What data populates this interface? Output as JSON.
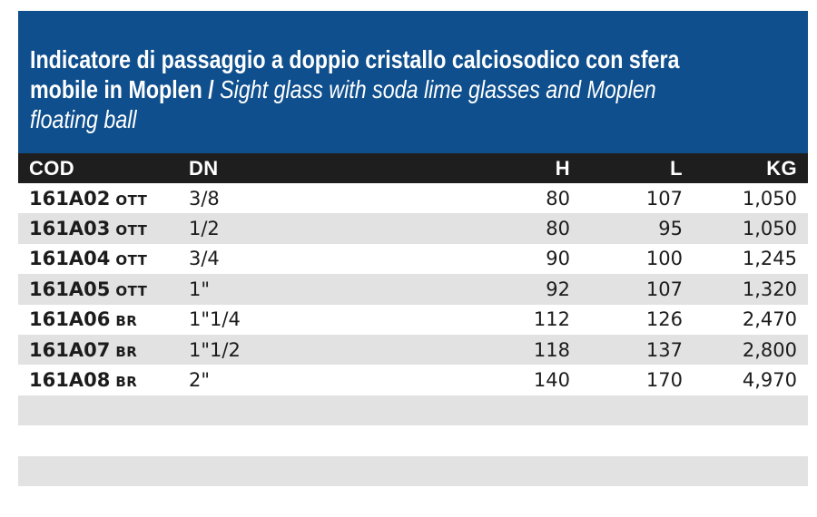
{
  "title": {
    "line1_bold": "Indicatore di passaggio a doppio cristallo calciosodico con sfera",
    "line2_bold": "mobile in Moplen /",
    "line2_italic": "Sight glass with soda lime glasses and Moplen",
    "line3_italic": "floating ball"
  },
  "table": {
    "columns": [
      {
        "key": "cod",
        "label": "COD"
      },
      {
        "key": "dn",
        "label": "DN"
      },
      {
        "key": "h",
        "label": "H"
      },
      {
        "key": "l",
        "label": "L"
      },
      {
        "key": "kg",
        "label": "KG"
      }
    ],
    "rows": [
      {
        "cod": "161A02",
        "cod_suffix": "OTT",
        "dn": "3/8",
        "h": "80",
        "l": "107",
        "kg": "1,050"
      },
      {
        "cod": "161A03",
        "cod_suffix": "OTT",
        "dn": "1/2",
        "h": "80",
        "l": "95",
        "kg": "1,050"
      },
      {
        "cod": "161A04",
        "cod_suffix": "OTT",
        "dn": "3/4",
        "h": "90",
        "l": "100",
        "kg": "1,245"
      },
      {
        "cod": "161A05",
        "cod_suffix": "OTT",
        "dn": "1\"",
        "h": "92",
        "l": "107",
        "kg": "1,320"
      },
      {
        "cod": "161A06",
        "cod_suffix": "BR",
        "dn": "1\"1/4",
        "h": "112",
        "l": "126",
        "kg": "2,470"
      },
      {
        "cod": "161A07",
        "cod_suffix": "BR",
        "dn": "1\"1/2",
        "h": "118",
        "l": "137",
        "kg": "2,800"
      },
      {
        "cod": "161A08",
        "cod_suffix": "BR",
        "dn": "2\"",
        "h": "140",
        "l": "170",
        "kg": "4,970"
      },
      {
        "cod": "",
        "cod_suffix": "",
        "dn": "",
        "h": "",
        "l": "",
        "kg": ""
      },
      {
        "cod": "",
        "cod_suffix": "",
        "dn": "",
        "h": "",
        "l": "",
        "kg": ""
      },
      {
        "cod": "",
        "cod_suffix": "",
        "dn": "",
        "h": "",
        "l": "",
        "kg": ""
      }
    ]
  },
  "colors": {
    "banner_blue": "#0F4F8D",
    "header_black": "#1F1E1E",
    "row_gray": "#E2E2E2",
    "text_dark": "#1C1C1C",
    "title_text": "#FFFFFF"
  }
}
